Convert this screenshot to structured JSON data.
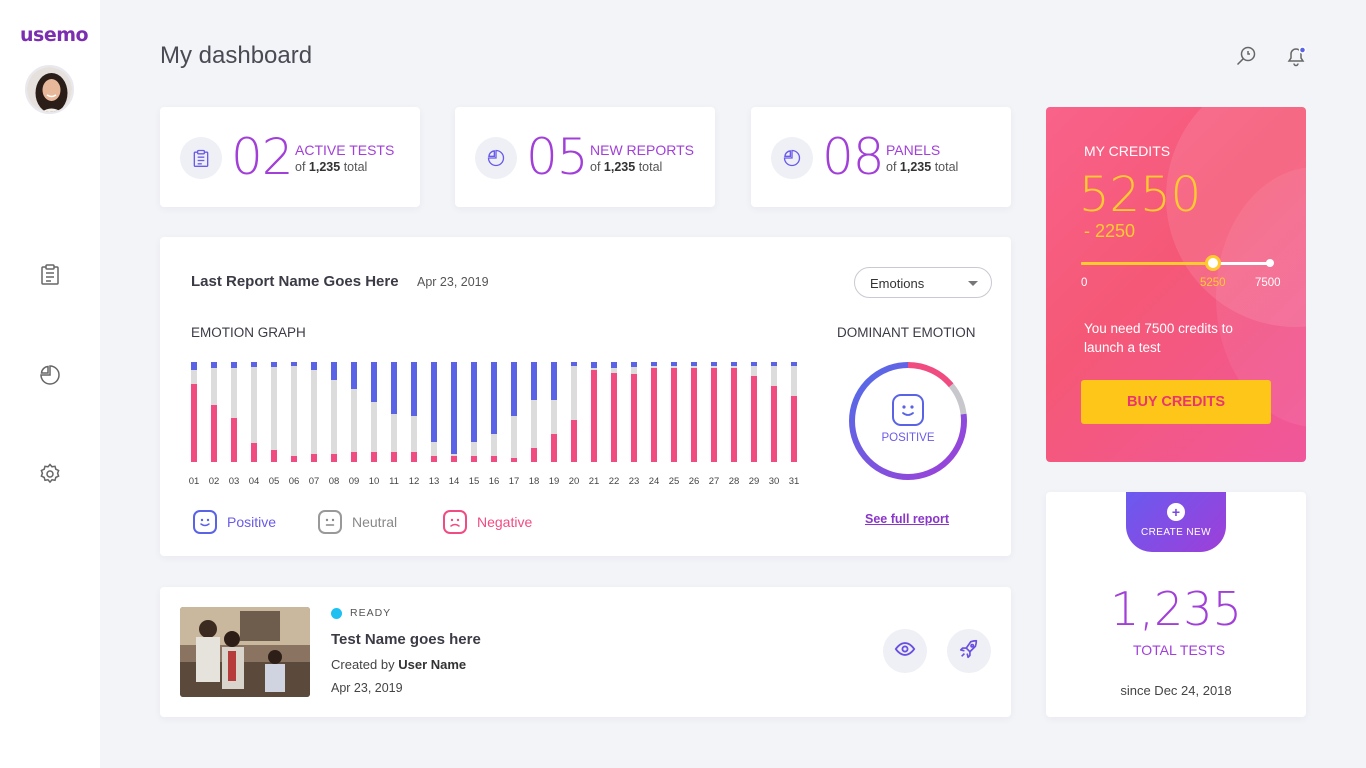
{
  "app": {
    "logo": "usemo",
    "page_title": "My dashboard"
  },
  "stats": [
    {
      "number": "02",
      "label": "Active tests",
      "sub_prefix": "of",
      "sub_value": "1,235",
      "sub_suffix": "total",
      "icon": "clipboard-icon"
    },
    {
      "number": "05",
      "label": "New reports",
      "sub_prefix": "of",
      "sub_value": "1,235",
      "sub_suffix": "total",
      "icon": "pie-chart-icon"
    },
    {
      "number": "08",
      "label": "Panels",
      "sub_prefix": "of",
      "sub_value": "1,235",
      "sub_suffix": "total",
      "icon": "pie-chart-icon"
    }
  ],
  "report": {
    "title": "Last Report Name Goes Here",
    "date": "Apr 23, 2019",
    "dropdown_value": "Emotions",
    "graph_heading": "EMOTION GRAPH",
    "dominant_heading": "DOMINANT EMOTION",
    "dominant_value": "POSITIVE",
    "see_full_report": "See full report",
    "legend": {
      "positive": "Positive",
      "neutral": "Neutral",
      "negative": "Negative"
    }
  },
  "colors": {
    "positive": "#5a63e6",
    "neutral": "#dcdcdc",
    "negative": "#f04c82",
    "accent": "#a13fd8",
    "credit_yellow": "#ffcb2e"
  },
  "chart_data": {
    "type": "bar",
    "stacked": true,
    "categories": [
      "01",
      "02",
      "03",
      "04",
      "05",
      "06",
      "07",
      "08",
      "09",
      "10",
      "11",
      "12",
      "13",
      "14",
      "15",
      "16",
      "17",
      "18",
      "19",
      "20",
      "21",
      "22",
      "23",
      "24",
      "25",
      "26",
      "27",
      "28",
      "29",
      "30",
      "31"
    ],
    "series": [
      {
        "name": "Positive",
        "values": [
          8,
          6,
          6,
          5,
          5,
          4,
          8,
          18,
          27,
          40,
          52,
          54,
          80,
          92,
          80,
          72,
          54,
          38,
          38,
          4,
          6,
          6,
          5,
          4,
          4,
          4,
          4,
          4,
          4,
          4,
          4
        ]
      },
      {
        "name": "Neutral",
        "values": [
          14,
          37,
          50,
          76,
          83,
          90,
          84,
          74,
          63,
          50,
          38,
          36,
          14,
          2,
          14,
          22,
          42,
          48,
          34,
          54,
          2,
          5,
          7,
          2,
          2,
          2,
          2,
          2,
          10,
          20,
          30
        ]
      },
      {
        "name": "Negative",
        "values": [
          78,
          57,
          44,
          19,
          12,
          6,
          8,
          8,
          10,
          10,
          10,
          10,
          6,
          6,
          6,
          6,
          4,
          14,
          28,
          42,
          92,
          89,
          88,
          94,
          94,
          94,
          94,
          94,
          86,
          76,
          66
        ]
      }
    ]
  },
  "dominant_ring": {
    "positive_pct": 77,
    "negative_pct": 14,
    "neutral_pct": 9
  },
  "credits": {
    "title": "My credits",
    "value": "5250",
    "delta": "- 2250",
    "slider_min_label": "0",
    "slider_current_label": "5250",
    "slider_max_label": "7500",
    "slider_current": 5250,
    "slider_max": 7500,
    "message": "You need 7500 credits to launch a test",
    "button": "Buy credits"
  },
  "tests_total": {
    "create_new": "Create new",
    "number": "1,235",
    "label": "Total tests",
    "since": "since Dec 24, 2018"
  },
  "test_item": {
    "status": "Ready",
    "name": "Test Name goes here",
    "created_prefix": "Created by",
    "created_user": "User Name",
    "date": "Apr 23, 2019"
  }
}
